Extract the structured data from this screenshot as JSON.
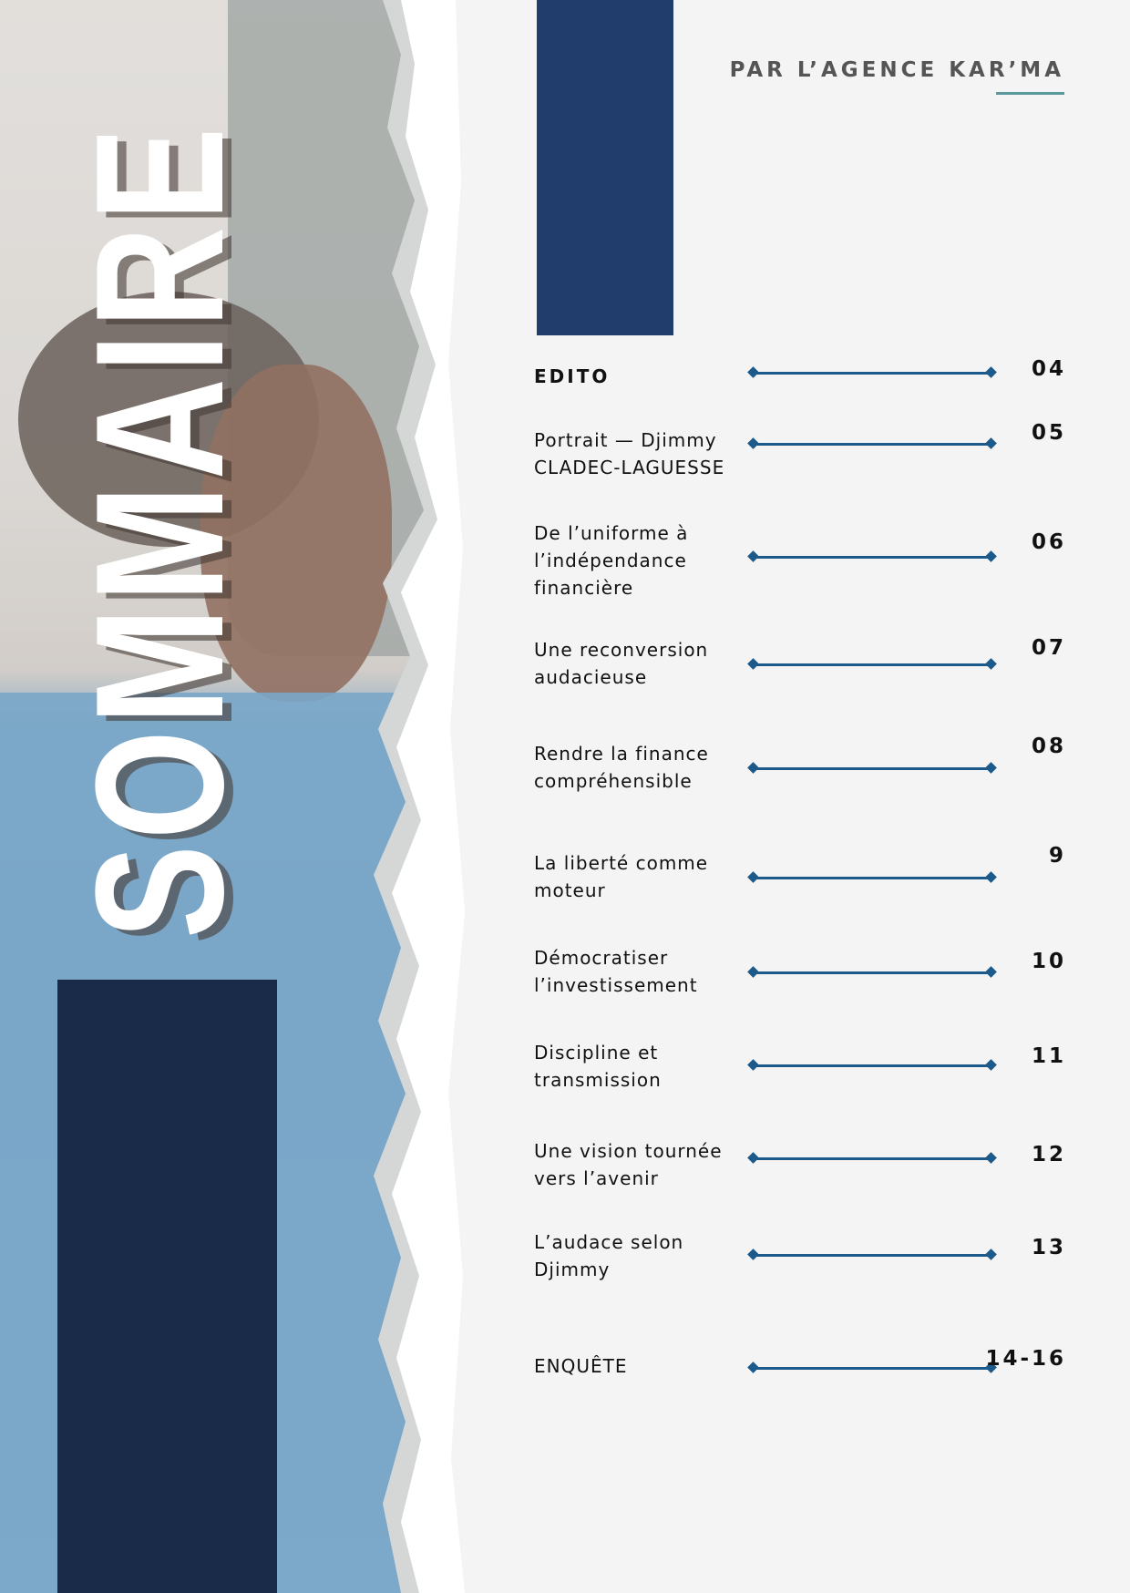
{
  "title": "SOMMAIRE",
  "agency": "PAR L’AGENCE KAR’MA",
  "colors": {
    "navy_top": "#203d6b",
    "navy_left": "#1a2b4a",
    "accent_line": "#5a9a9c",
    "connector": "#1d5a8c",
    "background": "#f4f4f4"
  },
  "items": [
    {
      "label": "EDITO",
      "page": "04"
    },
    {
      "label": "Portrait — Djimmy CLADEC-LAGUESSE",
      "page": "05"
    },
    {
      "label": "De l’uniforme à l’indépendance financière",
      "page": "06"
    },
    {
      "label": "Une reconversion audacieuse",
      "page": "07"
    },
    {
      "label": "Rendre la finance compréhensible",
      "page": "08"
    },
    {
      "label": "La liberté comme moteur",
      "page": "9"
    },
    {
      "label": "Démocratiser l’investissement",
      "page": "10"
    },
    {
      "label": "Discipline et transmission",
      "page": "11"
    },
    {
      "label": "Une vision tournée vers l’avenir",
      "page": "12"
    },
    {
      "label": "L’audace selon Djimmy",
      "page": "13"
    },
    {
      "label": "ENQUÊTE",
      "page": "14-16"
    }
  ]
}
